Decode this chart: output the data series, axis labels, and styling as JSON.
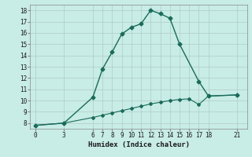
{
  "xlabel": "Humidex (Indice chaleur)",
  "background_color": "#c8ece6",
  "grid_color": "#b0ccc8",
  "line_color": "#1a6b5a",
  "line1_x": [
    0,
    3,
    6,
    7,
    8,
    9,
    10,
    11,
    12,
    13,
    14,
    15,
    17,
    18,
    21
  ],
  "line1_y": [
    7.8,
    8.0,
    10.3,
    12.8,
    14.3,
    15.9,
    16.5,
    16.8,
    18.0,
    17.7,
    17.3,
    15.0,
    11.7,
    10.4,
    10.5
  ],
  "line2_x": [
    0,
    3,
    6,
    7,
    8,
    9,
    10,
    11,
    12,
    13,
    14,
    15,
    16,
    17,
    18,
    21
  ],
  "line2_y": [
    7.8,
    8.0,
    8.5,
    8.7,
    8.9,
    9.1,
    9.3,
    9.5,
    9.7,
    9.85,
    10.0,
    10.1,
    10.15,
    9.65,
    10.4,
    10.5
  ],
  "xlim": [
    -0.5,
    22
  ],
  "ylim": [
    7.5,
    18.5
  ],
  "xticks": [
    0,
    3,
    6,
    7,
    8,
    9,
    10,
    11,
    12,
    13,
    14,
    15,
    16,
    17,
    18,
    21
  ],
  "yticks": [
    8,
    9,
    10,
    11,
    12,
    13,
    14,
    15,
    16,
    17,
    18
  ],
  "label_fontsize": 6.5,
  "tick_fontsize": 5.5
}
